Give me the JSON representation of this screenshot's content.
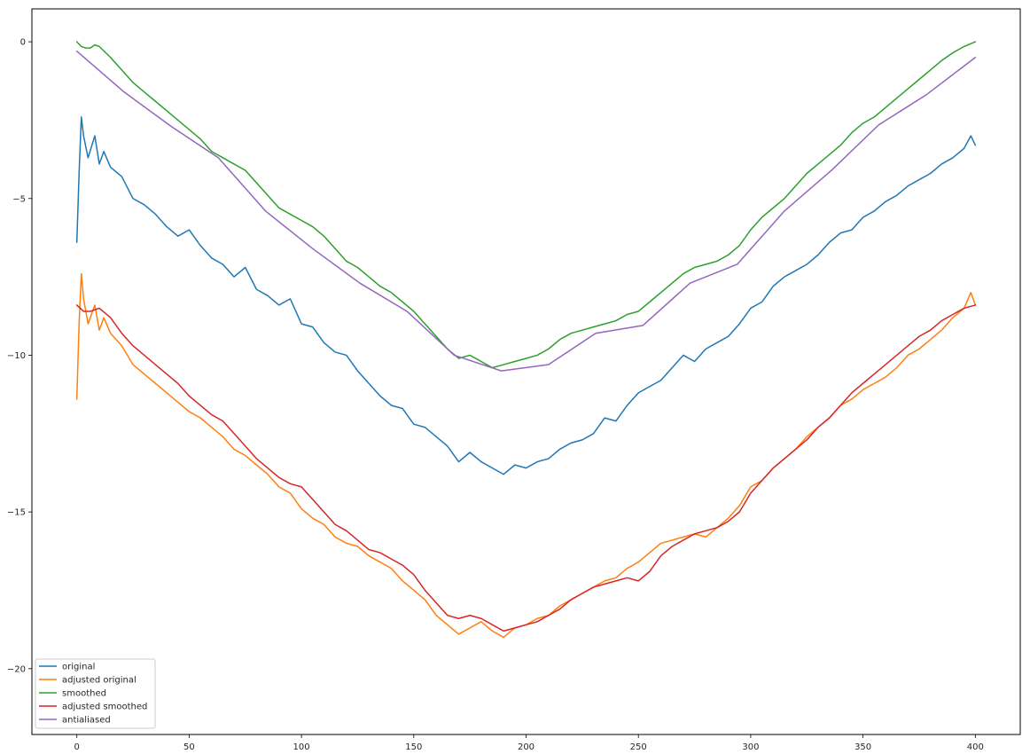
{
  "chart_data": {
    "type": "line",
    "title": "",
    "xlabel": "",
    "ylabel": "",
    "xlim": [
      -20,
      420
    ],
    "ylim": [
      -22.1,
      1.05
    ],
    "x_ticks": [
      0,
      50,
      100,
      150,
      200,
      250,
      300,
      350,
      400
    ],
    "y_ticks": [
      0,
      -5,
      -10,
      -15,
      -20
    ],
    "x_tick_labels": [
      "0",
      "50",
      "100",
      "150",
      "200",
      "250",
      "300",
      "350",
      "400"
    ],
    "y_tick_labels": [
      "0",
      "−5",
      "−10",
      "−15",
      "−20"
    ],
    "grid": false,
    "legend_position": "lower-left",
    "legend_labels": [
      "original",
      "adjusted original",
      "smoothed",
      "adjusted smoothed",
      "antialiased"
    ],
    "series": [
      {
        "name": "original",
        "color": "#1f77b4",
        "x": [
          0,
          1,
          2,
          3,
          5,
          8,
          10,
          12,
          15,
          20,
          25,
          30,
          35,
          40,
          45,
          50,
          55,
          60,
          65,
          70,
          75,
          80,
          85,
          90,
          95,
          100,
          105,
          110,
          115,
          120,
          125,
          130,
          135,
          140,
          145,
          150,
          155,
          160,
          165,
          170,
          175,
          180,
          185,
          190,
          195,
          200,
          205,
          210,
          215,
          220,
          225,
          230,
          235,
          240,
          245,
          250,
          255,
          260,
          265,
          270,
          275,
          280,
          285,
          290,
          295,
          300,
          305,
          310,
          315,
          320,
          325,
          330,
          335,
          340,
          345,
          350,
          355,
          360,
          365,
          370,
          375,
          380,
          385,
          390,
          395,
          398,
          400
        ],
        "y": [
          -6.4,
          -4.2,
          -2.4,
          -3.0,
          -3.7,
          -3.0,
          -3.9,
          -3.5,
          -4.0,
          -4.3,
          -5.0,
          -5.2,
          -5.5,
          -5.9,
          -6.2,
          -6.0,
          -6.5,
          -6.9,
          -7.1,
          -7.5,
          -7.2,
          -7.9,
          -8.1,
          -8.4,
          -8.2,
          -9.0,
          -9.1,
          -9.6,
          -9.9,
          -10.0,
          -10.5,
          -10.9,
          -11.3,
          -11.6,
          -11.7,
          -12.2,
          -12.3,
          -12.6,
          -12.9,
          -13.4,
          -13.1,
          -13.4,
          -13.6,
          -13.8,
          -13.5,
          -13.6,
          -13.4,
          -13.3,
          -13.0,
          -12.8,
          -12.7,
          -12.5,
          -12.0,
          -12.1,
          -11.6,
          -11.2,
          -11.0,
          -10.8,
          -10.4,
          -10.0,
          -10.2,
          -9.8,
          -9.6,
          -9.4,
          -9.0,
          -8.5,
          -8.3,
          -7.8,
          -7.5,
          -7.3,
          -7.1,
          -6.8,
          -6.4,
          -6.1,
          -6.0,
          -5.6,
          -5.4,
          -5.1,
          -4.9,
          -4.6,
          -4.4,
          -4.2,
          -3.9,
          -3.7,
          -3.4,
          -3.0,
          -3.3
        ]
      },
      {
        "name": "adjusted original",
        "color": "#ff7f0e",
        "x": [
          0,
          1,
          2,
          3,
          5,
          8,
          10,
          12,
          15,
          20,
          25,
          30,
          35,
          40,
          45,
          50,
          55,
          60,
          65,
          70,
          75,
          80,
          85,
          90,
          95,
          100,
          105,
          110,
          115,
          120,
          125,
          130,
          135,
          140,
          145,
          150,
          155,
          160,
          165,
          170,
          175,
          180,
          185,
          190,
          195,
          200,
          205,
          210,
          215,
          220,
          225,
          230,
          235,
          240,
          245,
          250,
          255,
          260,
          265,
          270,
          275,
          280,
          285,
          290,
          295,
          300,
          305,
          310,
          315,
          320,
          325,
          330,
          335,
          340,
          345,
          350,
          355,
          360,
          365,
          370,
          375,
          380,
          385,
          390,
          395,
          398,
          400
        ],
        "y": [
          -11.4,
          -9.0,
          -7.4,
          -8.2,
          -9.0,
          -8.4,
          -9.2,
          -8.8,
          -9.3,
          -9.7,
          -10.3,
          -10.6,
          -10.9,
          -11.2,
          -11.5,
          -11.8,
          -12.0,
          -12.3,
          -12.6,
          -13.0,
          -13.2,
          -13.5,
          -13.8,
          -14.2,
          -14.4,
          -14.9,
          -15.2,
          -15.4,
          -15.8,
          -16.0,
          -16.1,
          -16.4,
          -16.6,
          -16.8,
          -17.2,
          -17.5,
          -17.8,
          -18.3,
          -18.6,
          -18.9,
          -18.7,
          -18.5,
          -18.8,
          -19.0,
          -18.7,
          -18.6,
          -18.4,
          -18.3,
          -18.0,
          -17.8,
          -17.6,
          -17.4,
          -17.2,
          -17.1,
          -16.8,
          -16.6,
          -16.3,
          -16.0,
          -15.9,
          -15.8,
          -15.7,
          -15.8,
          -15.5,
          -15.2,
          -14.8,
          -14.2,
          -14.0,
          -13.6,
          -13.3,
          -13.0,
          -12.6,
          -12.3,
          -12.0,
          -11.6,
          -11.4,
          -11.1,
          -10.9,
          -10.7,
          -10.4,
          -10.0,
          -9.8,
          -9.5,
          -9.2,
          -8.8,
          -8.5,
          -8.0,
          -8.4
        ]
      },
      {
        "name": "smoothed",
        "color": "#2ca02c",
        "x": [
          0,
          2,
          4,
          6,
          8,
          10,
          15,
          20,
          25,
          30,
          35,
          40,
          45,
          50,
          55,
          60,
          65,
          70,
          75,
          80,
          85,
          90,
          95,
          100,
          105,
          110,
          115,
          120,
          125,
          130,
          135,
          140,
          145,
          150,
          155,
          160,
          165,
          170,
          175,
          180,
          185,
          190,
          195,
          200,
          205,
          210,
          215,
          220,
          225,
          230,
          235,
          240,
          245,
          250,
          255,
          260,
          265,
          270,
          275,
          280,
          285,
          290,
          295,
          300,
          305,
          310,
          315,
          320,
          325,
          330,
          335,
          340,
          345,
          350,
          355,
          360,
          365,
          370,
          375,
          380,
          385,
          390,
          395,
          400
        ],
        "y": [
          0.0,
          -0.15,
          -0.2,
          -0.2,
          -0.1,
          -0.15,
          -0.5,
          -0.9,
          -1.3,
          -1.6,
          -1.9,
          -2.2,
          -2.5,
          -2.8,
          -3.1,
          -3.5,
          -3.7,
          -3.9,
          -4.1,
          -4.5,
          -4.9,
          -5.3,
          -5.5,
          -5.7,
          -5.9,
          -6.2,
          -6.6,
          -7.0,
          -7.2,
          -7.5,
          -7.8,
          -8.0,
          -8.3,
          -8.6,
          -9.0,
          -9.4,
          -9.8,
          -10.1,
          -10.0,
          -10.2,
          -10.4,
          -10.3,
          -10.2,
          -10.1,
          -10.0,
          -9.8,
          -9.5,
          -9.3,
          -9.2,
          -9.1,
          -9.0,
          -8.9,
          -8.7,
          -8.6,
          -8.3,
          -8.0,
          -7.7,
          -7.4,
          -7.2,
          -7.1,
          -7.0,
          -6.8,
          -6.5,
          -6.0,
          -5.6,
          -5.3,
          -5.0,
          -4.6,
          -4.2,
          -3.9,
          -3.6,
          -3.3,
          -2.9,
          -2.6,
          -2.4,
          -2.1,
          -1.8,
          -1.5,
          -1.2,
          -0.9,
          -0.6,
          -0.35,
          -0.15,
          0.0
        ]
      },
      {
        "name": "adjusted smoothed",
        "color": "#d62728",
        "x": [
          0,
          3,
          6,
          10,
          15,
          20,
          25,
          30,
          35,
          40,
          45,
          50,
          55,
          60,
          65,
          70,
          75,
          80,
          85,
          90,
          95,
          100,
          105,
          110,
          115,
          120,
          125,
          130,
          135,
          140,
          145,
          150,
          155,
          160,
          165,
          170,
          175,
          180,
          185,
          190,
          195,
          200,
          205,
          210,
          215,
          220,
          225,
          230,
          235,
          240,
          245,
          250,
          255,
          260,
          265,
          270,
          275,
          280,
          285,
          290,
          295,
          300,
          305,
          310,
          315,
          320,
          325,
          330,
          335,
          340,
          345,
          350,
          355,
          360,
          365,
          370,
          375,
          380,
          385,
          390,
          395,
          400
        ],
        "y": [
          -8.4,
          -8.6,
          -8.6,
          -8.5,
          -8.8,
          -9.3,
          -9.7,
          -10.0,
          -10.3,
          -10.6,
          -10.9,
          -11.3,
          -11.6,
          -11.9,
          -12.1,
          -12.5,
          -12.9,
          -13.3,
          -13.6,
          -13.9,
          -14.1,
          -14.2,
          -14.6,
          -15.0,
          -15.4,
          -15.6,
          -15.9,
          -16.2,
          -16.3,
          -16.5,
          -16.7,
          -17.0,
          -17.5,
          -17.9,
          -18.3,
          -18.4,
          -18.3,
          -18.4,
          -18.6,
          -18.8,
          -18.7,
          -18.6,
          -18.5,
          -18.3,
          -18.1,
          -17.8,
          -17.6,
          -17.4,
          -17.3,
          -17.2,
          -17.1,
          -17.2,
          -16.9,
          -16.4,
          -16.1,
          -15.9,
          -15.7,
          -15.6,
          -15.5,
          -15.3,
          -15.0,
          -14.4,
          -14.0,
          -13.6,
          -13.3,
          -13.0,
          -12.7,
          -12.3,
          -12.0,
          -11.6,
          -11.2,
          -10.9,
          -10.6,
          -10.3,
          -10.0,
          -9.7,
          -9.4,
          -9.2,
          -8.9,
          -8.7,
          -8.5,
          -8.4
        ]
      },
      {
        "name": "antialiased",
        "color": "#9467bd",
        "x": [
          0,
          21,
          42,
          63,
          84,
          105,
          126,
          147,
          168,
          189,
          210,
          231,
          252,
          273,
          294,
          315,
          336,
          357,
          378,
          400
        ],
        "y": [
          -0.3,
          -1.6,
          -2.7,
          -3.7,
          -5.4,
          -6.6,
          -7.7,
          -8.6,
          -10.0,
          -10.5,
          -10.3,
          -9.3,
          -9.05,
          -7.7,
          -7.1,
          -5.4,
          -4.1,
          -2.65,
          -1.7,
          -0.5
        ]
      }
    ]
  }
}
